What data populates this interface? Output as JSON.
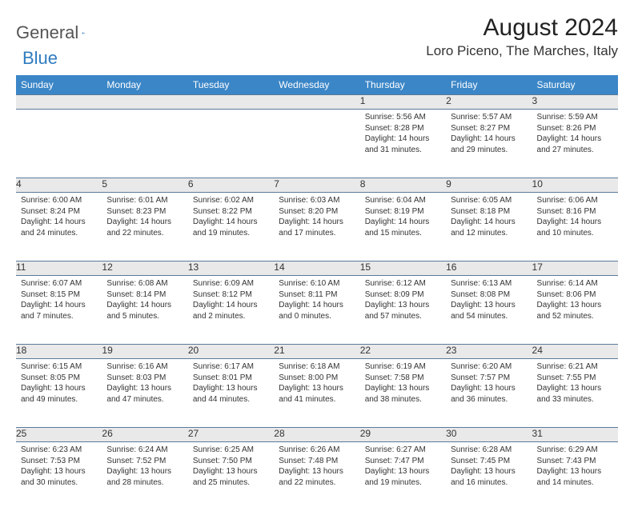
{
  "brand": {
    "name_gray": "General",
    "name_blue": "Blue"
  },
  "title": "August 2024",
  "location": "Loro Piceno, The Marches, Italy",
  "colors": {
    "header_bg": "#3b86c7",
    "header_text": "#ffffff",
    "daynum_bg": "#e9e9e9",
    "border": "#5a7a9a",
    "brand_blue": "#2f7bbf"
  },
  "weekdays": [
    "Sunday",
    "Monday",
    "Tuesday",
    "Wednesday",
    "Thursday",
    "Friday",
    "Saturday"
  ],
  "weeks": [
    {
      "nums": [
        "",
        "",
        "",
        "",
        "1",
        "2",
        "3"
      ],
      "cells": [
        null,
        null,
        null,
        null,
        {
          "sunrise": "Sunrise: 5:56 AM",
          "sunset": "Sunset: 8:28 PM",
          "daylight": "Daylight: 14 hours and 31 minutes."
        },
        {
          "sunrise": "Sunrise: 5:57 AM",
          "sunset": "Sunset: 8:27 PM",
          "daylight": "Daylight: 14 hours and 29 minutes."
        },
        {
          "sunrise": "Sunrise: 5:59 AM",
          "sunset": "Sunset: 8:26 PM",
          "daylight": "Daylight: 14 hours and 27 minutes."
        }
      ]
    },
    {
      "nums": [
        "4",
        "5",
        "6",
        "7",
        "8",
        "9",
        "10"
      ],
      "cells": [
        {
          "sunrise": "Sunrise: 6:00 AM",
          "sunset": "Sunset: 8:24 PM",
          "daylight": "Daylight: 14 hours and 24 minutes."
        },
        {
          "sunrise": "Sunrise: 6:01 AM",
          "sunset": "Sunset: 8:23 PM",
          "daylight": "Daylight: 14 hours and 22 minutes."
        },
        {
          "sunrise": "Sunrise: 6:02 AM",
          "sunset": "Sunset: 8:22 PM",
          "daylight": "Daylight: 14 hours and 19 minutes."
        },
        {
          "sunrise": "Sunrise: 6:03 AM",
          "sunset": "Sunset: 8:20 PM",
          "daylight": "Daylight: 14 hours and 17 minutes."
        },
        {
          "sunrise": "Sunrise: 6:04 AM",
          "sunset": "Sunset: 8:19 PM",
          "daylight": "Daylight: 14 hours and 15 minutes."
        },
        {
          "sunrise": "Sunrise: 6:05 AM",
          "sunset": "Sunset: 8:18 PM",
          "daylight": "Daylight: 14 hours and 12 minutes."
        },
        {
          "sunrise": "Sunrise: 6:06 AM",
          "sunset": "Sunset: 8:16 PM",
          "daylight": "Daylight: 14 hours and 10 minutes."
        }
      ]
    },
    {
      "nums": [
        "11",
        "12",
        "13",
        "14",
        "15",
        "16",
        "17"
      ],
      "cells": [
        {
          "sunrise": "Sunrise: 6:07 AM",
          "sunset": "Sunset: 8:15 PM",
          "daylight": "Daylight: 14 hours and 7 minutes."
        },
        {
          "sunrise": "Sunrise: 6:08 AM",
          "sunset": "Sunset: 8:14 PM",
          "daylight": "Daylight: 14 hours and 5 minutes."
        },
        {
          "sunrise": "Sunrise: 6:09 AM",
          "sunset": "Sunset: 8:12 PM",
          "daylight": "Daylight: 14 hours and 2 minutes."
        },
        {
          "sunrise": "Sunrise: 6:10 AM",
          "sunset": "Sunset: 8:11 PM",
          "daylight": "Daylight: 14 hours and 0 minutes."
        },
        {
          "sunrise": "Sunrise: 6:12 AM",
          "sunset": "Sunset: 8:09 PM",
          "daylight": "Daylight: 13 hours and 57 minutes."
        },
        {
          "sunrise": "Sunrise: 6:13 AM",
          "sunset": "Sunset: 8:08 PM",
          "daylight": "Daylight: 13 hours and 54 minutes."
        },
        {
          "sunrise": "Sunrise: 6:14 AM",
          "sunset": "Sunset: 8:06 PM",
          "daylight": "Daylight: 13 hours and 52 minutes."
        }
      ]
    },
    {
      "nums": [
        "18",
        "19",
        "20",
        "21",
        "22",
        "23",
        "24"
      ],
      "cells": [
        {
          "sunrise": "Sunrise: 6:15 AM",
          "sunset": "Sunset: 8:05 PM",
          "daylight": "Daylight: 13 hours and 49 minutes."
        },
        {
          "sunrise": "Sunrise: 6:16 AM",
          "sunset": "Sunset: 8:03 PM",
          "daylight": "Daylight: 13 hours and 47 minutes."
        },
        {
          "sunrise": "Sunrise: 6:17 AM",
          "sunset": "Sunset: 8:01 PM",
          "daylight": "Daylight: 13 hours and 44 minutes."
        },
        {
          "sunrise": "Sunrise: 6:18 AM",
          "sunset": "Sunset: 8:00 PM",
          "daylight": "Daylight: 13 hours and 41 minutes."
        },
        {
          "sunrise": "Sunrise: 6:19 AM",
          "sunset": "Sunset: 7:58 PM",
          "daylight": "Daylight: 13 hours and 38 minutes."
        },
        {
          "sunrise": "Sunrise: 6:20 AM",
          "sunset": "Sunset: 7:57 PM",
          "daylight": "Daylight: 13 hours and 36 minutes."
        },
        {
          "sunrise": "Sunrise: 6:21 AM",
          "sunset": "Sunset: 7:55 PM",
          "daylight": "Daylight: 13 hours and 33 minutes."
        }
      ]
    },
    {
      "nums": [
        "25",
        "26",
        "27",
        "28",
        "29",
        "30",
        "31"
      ],
      "cells": [
        {
          "sunrise": "Sunrise: 6:23 AM",
          "sunset": "Sunset: 7:53 PM",
          "daylight": "Daylight: 13 hours and 30 minutes."
        },
        {
          "sunrise": "Sunrise: 6:24 AM",
          "sunset": "Sunset: 7:52 PM",
          "daylight": "Daylight: 13 hours and 28 minutes."
        },
        {
          "sunrise": "Sunrise: 6:25 AM",
          "sunset": "Sunset: 7:50 PM",
          "daylight": "Daylight: 13 hours and 25 minutes."
        },
        {
          "sunrise": "Sunrise: 6:26 AM",
          "sunset": "Sunset: 7:48 PM",
          "daylight": "Daylight: 13 hours and 22 minutes."
        },
        {
          "sunrise": "Sunrise: 6:27 AM",
          "sunset": "Sunset: 7:47 PM",
          "daylight": "Daylight: 13 hours and 19 minutes."
        },
        {
          "sunrise": "Sunrise: 6:28 AM",
          "sunset": "Sunset: 7:45 PM",
          "daylight": "Daylight: 13 hours and 16 minutes."
        },
        {
          "sunrise": "Sunrise: 6:29 AM",
          "sunset": "Sunset: 7:43 PM",
          "daylight": "Daylight: 13 hours and 14 minutes."
        }
      ]
    }
  ]
}
